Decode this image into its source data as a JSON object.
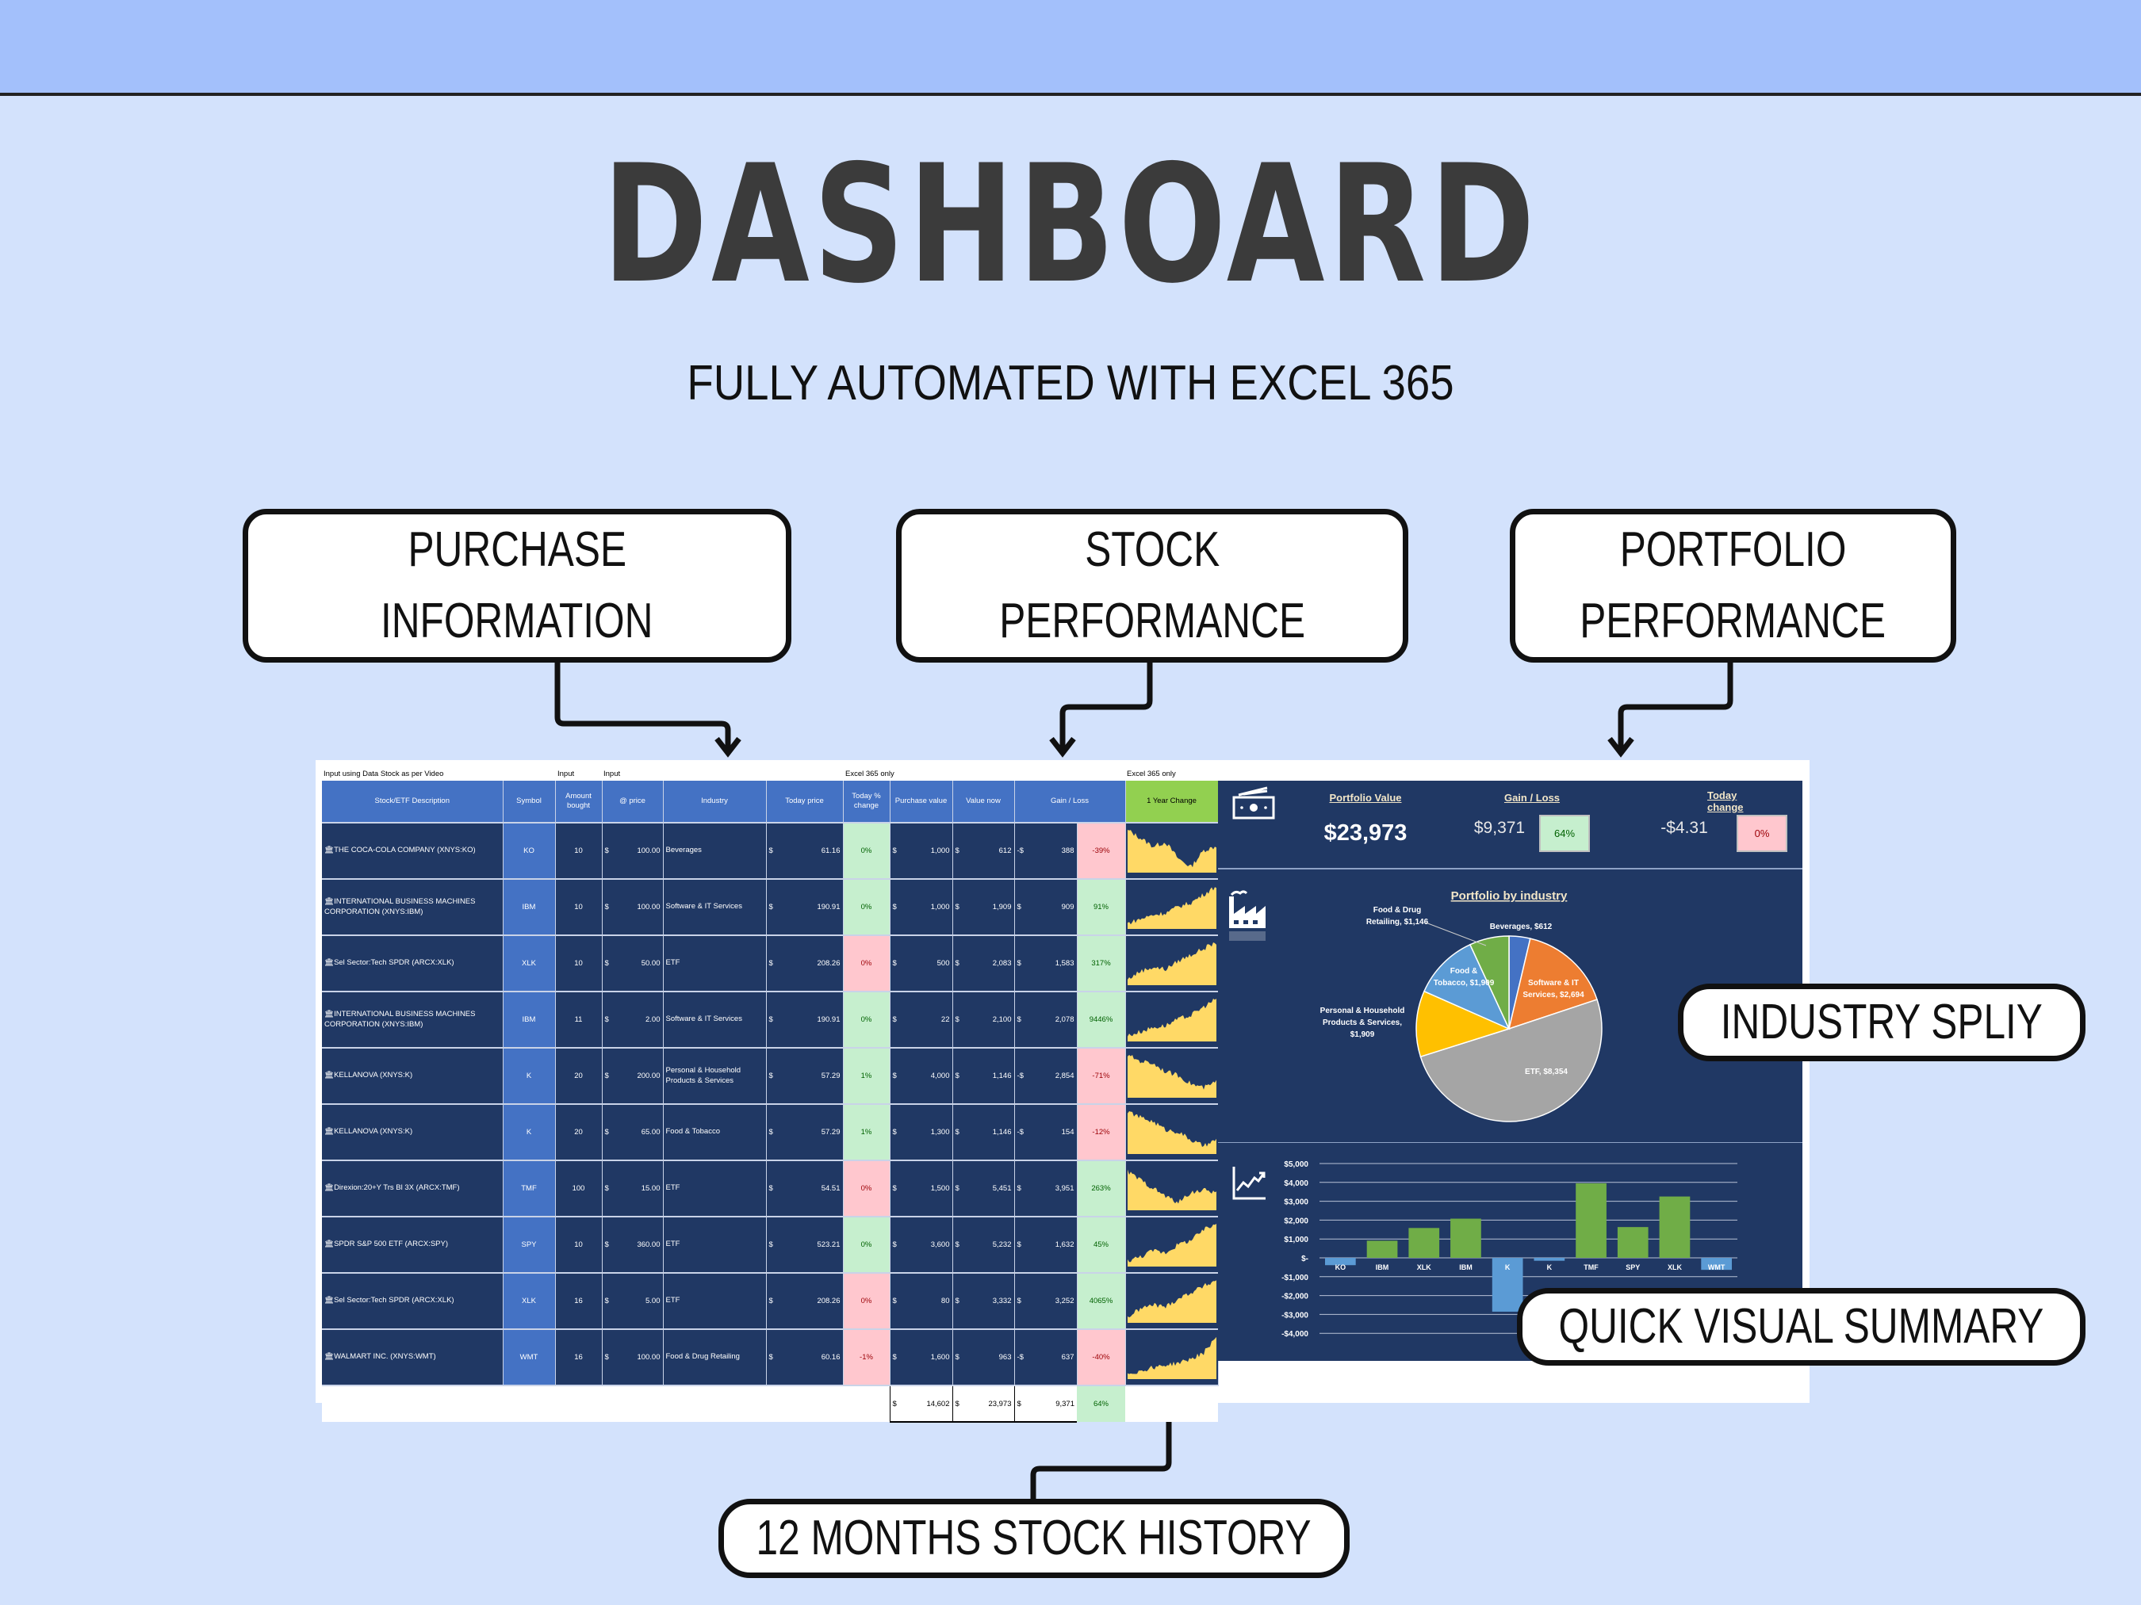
{
  "header": {
    "title": "DASHBOARD",
    "subtitle": "FULLY AUTOMATED WITH EXCEL 365"
  },
  "callouts": {
    "purchase": [
      "PURCHASE",
      "INFORMATION"
    ],
    "stock": [
      "STOCK",
      "PERFORMANCE"
    ],
    "portfolio": [
      "PORTFOLIO",
      "PERFORMANCE"
    ],
    "industry": "INDUSTRY SPLIY",
    "visual": "QUICK VISUAL SUMMARY",
    "history": "12 MONTHS STOCK HISTORY"
  },
  "sheet": {
    "top_labels": {
      "input_note": "Input using Data Stock as per Video",
      "input1": "Input",
      "input2": "Input",
      "excel1": "Excel 365 only",
      "excel2": "Excel 365 only"
    },
    "columns": [
      "Stock/ETF Description",
      "Symbol",
      "Amount bought",
      "@ price",
      "Industry",
      "Today price",
      "Today % change",
      "Purchase value",
      "Value now",
      "Gain / Loss",
      "1 Year Change"
    ],
    "rows": [
      {
        "desc": "THE COCA-COLA COMPANY (XNYS:KO)",
        "symbol": "KO",
        "amount": "10",
        "price": "100.00",
        "industry": "Beverages",
        "today": "61.16",
        "today_pct": "0%",
        "today_pct_state": "pos",
        "purchase": "1,000",
        "value": "612",
        "gain_sign": "-$",
        "gain": "388",
        "gain_pct": "-39%",
        "gain_state": "neg"
      },
      {
        "desc": "INTERNATIONAL BUSINESS MACHINES CORPORATION (XNYS:IBM)",
        "symbol": "IBM",
        "amount": "10",
        "price": "100.00",
        "industry": "Software & IT Services",
        "today": "190.91",
        "today_pct": "0%",
        "today_pct_state": "pos",
        "purchase": "1,000",
        "value": "1,909",
        "gain_sign": "$",
        "gain": "909",
        "gain_pct": "91%",
        "gain_state": "pos"
      },
      {
        "desc": "Sel Sector:Tech SPDR (ARCX:XLK)",
        "symbol": "XLK",
        "amount": "10",
        "price": "50.00",
        "industry": "ETF",
        "today": "208.26",
        "today_pct": "0%",
        "today_pct_state": "neg",
        "purchase": "500",
        "value": "2,083",
        "gain_sign": "$",
        "gain": "1,583",
        "gain_pct": "317%",
        "gain_state": "pos"
      },
      {
        "desc": "INTERNATIONAL BUSINESS MACHINES CORPORATION (XNYS:IBM)",
        "symbol": "IBM",
        "amount": "11",
        "price": "2.00",
        "industry": "Software & IT Services",
        "today": "190.91",
        "today_pct": "0%",
        "today_pct_state": "pos",
        "purchase": "22",
        "value": "2,100",
        "gain_sign": "$",
        "gain": "2,078",
        "gain_pct": "9446%",
        "gain_state": "pos"
      },
      {
        "desc": "KELLANOVA (XNYS:K)",
        "symbol": "K",
        "amount": "20",
        "price": "200.00",
        "industry": "Personal & Household Products & Services",
        "today": "57.29",
        "today_pct": "1%",
        "today_pct_state": "pos",
        "purchase": "4,000",
        "value": "1,146",
        "gain_sign": "-$",
        "gain": "2,854",
        "gain_pct": "-71%",
        "gain_state": "neg"
      },
      {
        "desc": "KELLANOVA (XNYS:K)",
        "symbol": "K",
        "amount": "20",
        "price": "65.00",
        "industry": "Food & Tobacco",
        "today": "57.29",
        "today_pct": "1%",
        "today_pct_state": "pos",
        "purchase": "1,300",
        "value": "1,146",
        "gain_sign": "-$",
        "gain": "154",
        "gain_pct": "-12%",
        "gain_state": "neg"
      },
      {
        "desc": "Direxion:20+Y Trs Bl 3X (ARCX:TMF)",
        "symbol": "TMF",
        "amount": "100",
        "price": "15.00",
        "industry": "ETF",
        "today": "54.51",
        "today_pct": "0%",
        "today_pct_state": "neg",
        "purchase": "1,500",
        "value": "5,451",
        "gain_sign": "$",
        "gain": "3,951",
        "gain_pct": "263%",
        "gain_state": "pos"
      },
      {
        "desc": "SPDR S&P 500 ETF (ARCX:SPY)",
        "symbol": "SPY",
        "amount": "10",
        "price": "360.00",
        "industry": "ETF",
        "today": "523.21",
        "today_pct": "0%",
        "today_pct_state": "pos",
        "purchase": "3,600",
        "value": "5,232",
        "gain_sign": "$",
        "gain": "1,632",
        "gain_pct": "45%",
        "gain_state": "pos"
      },
      {
        "desc": "Sel Sector:Tech SPDR (ARCX:XLK)",
        "symbol": "XLK",
        "amount": "16",
        "price": "5.00",
        "industry": "ETF",
        "today": "208.26",
        "today_pct": "0%",
        "today_pct_state": "neg",
        "purchase": "80",
        "value": "3,332",
        "gain_sign": "$",
        "gain": "3,252",
        "gain_pct": "4065%",
        "gain_state": "pos"
      },
      {
        "desc": "WALMART INC. (XNYS:WMT)",
        "symbol": "WMT",
        "amount": "16",
        "price": "100.00",
        "industry": "Food & Drug Retailing",
        "today": "60.16",
        "today_pct": "-1%",
        "today_pct_state": "neg",
        "purchase": "1,600",
        "value": "963",
        "gain_sign": "-$",
        "gain": "637",
        "gain_pct": "-40%",
        "gain_state": "neg"
      }
    ],
    "totals": {
      "purchase": "14,602",
      "value": "23,973",
      "gain": "9,371",
      "gain_pct": "64%"
    },
    "currency": "$"
  },
  "kpi": {
    "portfolio_value_label": "Portfolio Value",
    "portfolio_value": "$23,973",
    "gain_loss_label": "Gain / Loss",
    "gain_loss": "$9,371",
    "gain_loss_pct": "64%",
    "today_change_label": "Today change",
    "today_change": "-$4.31",
    "today_change_pct": "0%"
  },
  "colors": {
    "navy": "#203864",
    "blue": "#4472c4",
    "green_header": "#92d050",
    "pos_bg": "#c6efce",
    "neg_bg": "#ffc7ce",
    "spark": "#ffd966"
  },
  "icons": {
    "kpi": "money-icon",
    "pie": "factory-icon",
    "bars": "line-chart-icon"
  },
  "chart_data": [
    {
      "type": "pie",
      "title": "Portfolio by industry",
      "labels": [
        "Beverages",
        "Software & IT Services",
        "ETF",
        "Personal & Household Products & Services",
        "Food & Tobacco",
        "Food & Drug Retailing"
      ],
      "values": [
        612,
        2694,
        8354,
        1909,
        1909,
        1146
      ],
      "value_labels": [
        "$612",
        "$2,694",
        "$8,354",
        "$1,909",
        "$1,909",
        "$1,146"
      ],
      "colors": [
        "#4472c4",
        "#ed7d31",
        "#a5a5a5",
        "#ffc000",
        "#5b9bd5",
        "#70ad47"
      ]
    },
    {
      "type": "bar",
      "categories": [
        "KO",
        "IBM",
        "XLK",
        "IBM",
        "K",
        "K",
        "TMF",
        "SPY",
        "XLK",
        "WMT"
      ],
      "values": [
        -388,
        909,
        1583,
        2078,
        -2854,
        -154,
        3951,
        1632,
        3252,
        -637
      ],
      "ylim": [
        -4000,
        5000
      ],
      "yticks": [
        "$5,000",
        "$4,000",
        "$3,000",
        "$2,000",
        "$1,000",
        "$-",
        "-$1,000",
        "-$2,000",
        "-$3,000",
        "-$4,000"
      ],
      "grid": true,
      "positive_color": "#70ad47",
      "negative_color": "#5b9bd5"
    }
  ]
}
